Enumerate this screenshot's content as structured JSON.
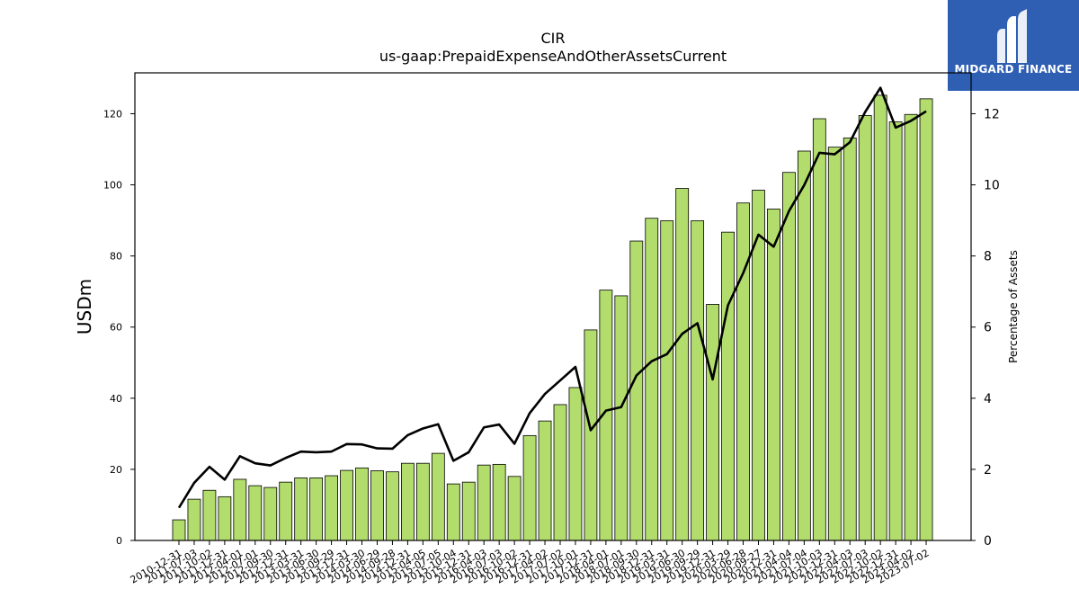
{
  "logo": {
    "text": "MIDGARD FINANCE"
  },
  "chart_data": {
    "type": "bar",
    "title": "CIR",
    "subtitle": "us-gaap:PrepaidExpenseAndOtherAssetsCurrent",
    "ylabel": "USDm",
    "y2label": "Percentage of Assets",
    "ylim": [
      0,
      131.5
    ],
    "y2lim": [
      0,
      13.15
    ],
    "yticks": [
      0,
      20,
      40,
      60,
      80,
      100,
      120
    ],
    "y2ticks": [
      0,
      2,
      4,
      6,
      8,
      10,
      12
    ],
    "bar_color": "#b2dd6c",
    "line_color": "#000000",
    "categories": [
      "2010-12-31",
      "2011-07-03",
      "2011-10-02",
      "2011-12-31",
      "2012-04-01",
      "2012-07-01",
      "2012-09-30",
      "2012-12-31",
      "2013-03-31",
      "2013-06-30",
      "2013-09-29",
      "2013-12-31",
      "2014-03-30",
      "2014-06-29",
      "2014-09-28",
      "2014-12-31",
      "2015-04-05",
      "2015-07-05",
      "2015-10-04",
      "2015-12-31",
      "2016-04-03",
      "2016-07-03",
      "2016-10-02",
      "2016-12-31",
      "2017-04-02",
      "2017-07-02",
      "2017-10-01",
      "2017-12-31",
      "2018-04-01",
      "2018-07-01",
      "2018-09-30",
      "2018-12-31",
      "2019-03-31",
      "2019-06-30",
      "2019-09-29",
      "2019-12-31",
      "2020-03-29",
      "2020-06-28",
      "2020-09-27",
      "2020-12-31",
      "2021-04-04",
      "2021-07-04",
      "2021-10-03",
      "2021-12-31",
      "2022-04-03",
      "2022-07-03",
      "2022-10-02",
      "2022-12-31",
      "2023-04-02",
      "2023-07-02"
    ],
    "series": [
      {
        "type": "bar",
        "axis": "left",
        "values": [
          5.8,
          11.6,
          14.1,
          12.3,
          17.2,
          15.4,
          14.9,
          16.4,
          17.6,
          17.6,
          18.2,
          19.7,
          20.4,
          19.6,
          19.3,
          21.7,
          21.7,
          24.5,
          15.9,
          16.4,
          21.2,
          21.4,
          18.0,
          29.5,
          33.6,
          38.2,
          43.0,
          59.2,
          70.4,
          68.8,
          84.2,
          90.6,
          89.9,
          99.0,
          89.9,
          66.4,
          86.7,
          94.9,
          98.5,
          93.2,
          103.5,
          109.5,
          118.6,
          110.6,
          113.2,
          119.5,
          125.2,
          117.7,
          119.8,
          124.2
        ]
      },
      {
        "type": "line",
        "axis": "right",
        "values": [
          0.92,
          1.62,
          2.07,
          1.71,
          2.37,
          2.17,
          2.11,
          2.32,
          2.5,
          2.48,
          2.5,
          2.71,
          2.7,
          2.59,
          2.58,
          2.96,
          3.15,
          3.27,
          2.24,
          2.48,
          3.18,
          3.26,
          2.72,
          3.58,
          4.12,
          4.5,
          4.88,
          3.1,
          3.65,
          3.75,
          4.64,
          5.04,
          5.24,
          5.81,
          6.11,
          4.53,
          6.61,
          7.52,
          8.6,
          8.26,
          9.26,
          9.99,
          10.9,
          10.86,
          11.2,
          12.05,
          12.73,
          11.61,
          11.8,
          12.07
        ]
      }
    ],
    "grid": false
  }
}
